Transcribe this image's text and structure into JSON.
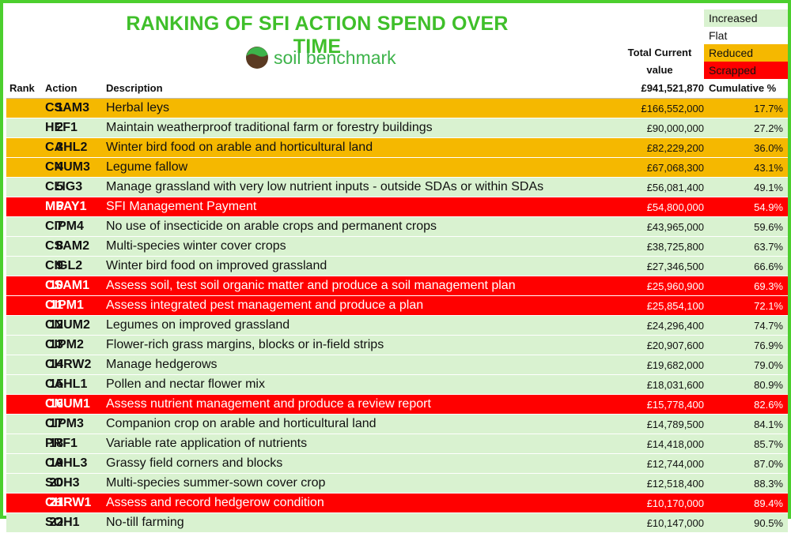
{
  "title": "RANKING OF SFI ACTION SPEND OVER TIME",
  "logo_text": "soil benchmark",
  "total_label_line1": "Total Current",
  "total_label_line2": "value",
  "legend": [
    "Increased",
    "Flat",
    "Reduced",
    "Scrapped"
  ],
  "colors": {
    "Increased": "#d9f2d0",
    "Flat": "#ffffff",
    "Reduced": "#f5b800",
    "Scrapped": "#ff0000",
    "border": "#4ccf2e",
    "title": "#3fbf2a"
  },
  "headers": {
    "rank": "Rank",
    "action": "Action",
    "description": "Description",
    "total": "£941,521,870",
    "cumulative": "Cumulative %"
  },
  "rows": [
    {
      "rank": "1",
      "action": "CSAM3",
      "description": "Herbal leys",
      "value": "£166,552,000",
      "cumulative": "17.7%",
      "status": "Reduced"
    },
    {
      "rank": "2",
      "action": "HEF1",
      "description": "Maintain weatherproof traditional farm or forestry buildings",
      "value": "£90,000,000",
      "cumulative": "27.2%",
      "status": "Increased"
    },
    {
      "rank": "3",
      "action": "CAHL2",
      "description": "Winter bird food on arable and horticultural land",
      "value": "£82,229,200",
      "cumulative": "36.0%",
      "status": "Reduced"
    },
    {
      "rank": "4",
      "action": "CNUM3",
      "description": "Legume fallow",
      "value": "£67,068,300",
      "cumulative": "43.1%",
      "status": "Reduced"
    },
    {
      "rank": "5",
      "action": "CLIG3",
      "description": "Manage grassland with very low nutrient inputs - outside SDAs or within SDAs",
      "value": "£56,081,400",
      "cumulative": "49.1%",
      "status": "Increased"
    },
    {
      "rank": "6",
      "action": "MPAY1",
      "description": "SFI Management Payment",
      "value": "£54,800,000",
      "cumulative": "54.9%",
      "status": "Scrapped"
    },
    {
      "rank": "7",
      "action": "CIPM4",
      "description": "No use of insecticide on arable crops and permanent crops",
      "value": "£43,965,000",
      "cumulative": "59.6%",
      "status": "Increased"
    },
    {
      "rank": "8",
      "action": "CSAM2",
      "description": "Multi-species winter cover crops",
      "value": "£38,725,800",
      "cumulative": "63.7%",
      "status": "Increased"
    },
    {
      "rank": "9",
      "action": "CIGL2",
      "description": "Winter bird food on improved grassland",
      "value": "£27,346,500",
      "cumulative": "66.6%",
      "status": "Increased"
    },
    {
      "rank": "10",
      "action": "CSAM1",
      "description": "Assess soil, test soil organic matter and produce a soil management plan",
      "value": "£25,960,900",
      "cumulative": "69.3%",
      "status": "Scrapped"
    },
    {
      "rank": "11",
      "action": "CIPM1",
      "description": "Assess integrated pest management and produce a plan",
      "value": "£25,854,100",
      "cumulative": "72.1%",
      "status": "Scrapped"
    },
    {
      "rank": "12",
      "action": "CNUM2",
      "description": "Legumes on improved grassland",
      "value": "£24,296,400",
      "cumulative": "74.7%",
      "status": "Increased"
    },
    {
      "rank": "13",
      "action": "CIPM2",
      "description": "Flower-rich grass margins, blocks or in-field strips",
      "value": "£20,907,600",
      "cumulative": "76.9%",
      "status": "Increased"
    },
    {
      "rank": "14",
      "action": "CHRW2",
      "description": "Manage hedgerows",
      "value": "£19,682,000",
      "cumulative": "79.0%",
      "status": "Increased"
    },
    {
      "rank": "15",
      "action": "CAHL1",
      "description": "Pollen and nectar flower mix",
      "value": "£18,031,600",
      "cumulative": "80.9%",
      "status": "Increased"
    },
    {
      "rank": "16",
      "action": "CNUM1",
      "description": "Assess nutrient management and produce a review report",
      "value": "£15,778,400",
      "cumulative": "82.6%",
      "status": "Scrapped"
    },
    {
      "rank": "17",
      "action": "CIPM3",
      "description": "Companion crop on arable and horticultural land",
      "value": "£14,789,500",
      "cumulative": "84.1%",
      "status": "Increased"
    },
    {
      "rank": "18",
      "action": "PRF1",
      "description": "Variable rate application of nutrients",
      "value": "£14,418,000",
      "cumulative": "85.7%",
      "status": "Increased"
    },
    {
      "rank": "19",
      "action": "CAHL3",
      "description": "Grassy field corners and blocks",
      "value": "£12,744,000",
      "cumulative": "87.0%",
      "status": "Increased"
    },
    {
      "rank": "20",
      "action": "SOH3",
      "description": "Multi-species summer-sown cover crop",
      "value": "£12,518,400",
      "cumulative": "88.3%",
      "status": "Increased"
    },
    {
      "rank": "21",
      "action": "CHRW1",
      "description": "Assess and record hedgerow condition",
      "value": "£10,170,000",
      "cumulative": "89.4%",
      "status": "Scrapped"
    },
    {
      "rank": "22",
      "action": "SOH1",
      "description": "No-till farming",
      "value": "£10,147,000",
      "cumulative": "90.5%",
      "status": "Increased"
    }
  ]
}
